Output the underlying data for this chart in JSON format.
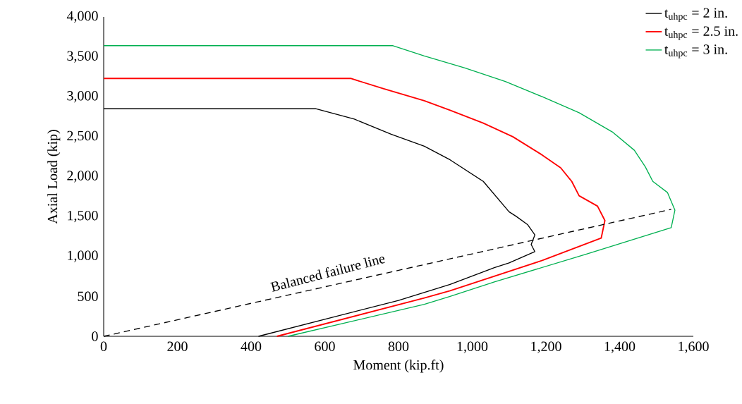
{
  "chart_data": {
    "type": "line",
    "xlabel": "Moment (kip.ft)",
    "ylabel": "Axial Load (kip)",
    "xlim": [
      0,
      1600
    ],
    "ylim": [
      0,
      4000
    ],
    "xticks": [
      0,
      200,
      400,
      600,
      800,
      {
        "value": 1000,
        "label": "1,000"
      },
      {
        "value": 1200,
        "label": "1,200"
      },
      {
        "value": 1400,
        "label": "1,400"
      },
      {
        "value": 1600,
        "label": "1,600"
      }
    ],
    "yticks": [
      0,
      500,
      {
        "value": 1000,
        "label": "1,000"
      },
      {
        "value": 1500,
        "label": "1,500"
      },
      {
        "value": 2000,
        "label": "2,000"
      },
      {
        "value": 2500,
        "label": "2,500"
      },
      {
        "value": 3000,
        "label": "3,000"
      },
      {
        "value": 3500,
        "label": "3,500"
      },
      {
        "value": 4000,
        "label": "4,000"
      }
    ],
    "grid": false,
    "legend": "top right",
    "marker": "none",
    "series": [
      {
        "name": "t$_{uhpc}$ = 2 in.",
        "color": "#000000",
        "x": [
          0,
          575,
          680,
          780,
          870,
          940,
          1030,
          1100,
          1120,
          1150,
          1170,
          1160,
          1170,
          1100,
          1060,
          940,
          800,
          420
        ],
        "values": [
          2850,
          2850,
          2720,
          2530,
          2380,
          2210,
          1940,
          1560,
          1500,
          1400,
          1270,
          1150,
          1060,
          920,
          860,
          650,
          450,
          0
        ]
      },
      {
        "name": "t$_{uhpc}$ = 2.5 in.",
        "color": "#ff0000",
        "x": [
          0,
          670,
          760,
          870,
          940,
          1030,
          1110,
          1190,
          1240,
          1270,
          1290,
          1340,
          1360,
          1350,
          1190,
          940,
          870,
          470
        ],
        "values": [
          3230,
          3230,
          3100,
          2950,
          2830,
          2670,
          2500,
          2270,
          2110,
          1940,
          1760,
          1630,
          1450,
          1230,
          950,
          570,
          480,
          0
        ]
      },
      {
        "name": "t$_{uhpc}$ = 3 in.",
        "color": "#00b050",
        "x": [
          0,
          785,
          870,
          980,
          1090,
          1190,
          1290,
          1380,
          1440,
          1470,
          1490,
          1530,
          1550,
          1540,
          1310,
          1060,
          940,
          870,
          500
        ],
        "values": [
          3640,
          3640,
          3510,
          3360,
          3190,
          3000,
          2800,
          2560,
          2330,
          2120,
          1940,
          1800,
          1580,
          1360,
          1030,
          680,
          500,
          400,
          0
        ]
      },
      {
        "color": "#000000",
        "line_style": "dashed",
        "x": [
          0,
          1540
        ],
        "values": [
          0,
          1590
        ]
      }
    ],
    "annotations": [
      "Balanced failure line"
    ]
  }
}
